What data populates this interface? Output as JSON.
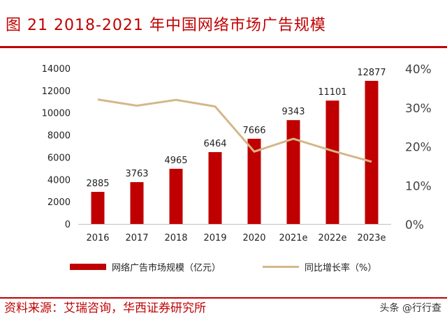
{
  "header": {
    "title": "图 21  2018-2021 年中国网络市场广告规模"
  },
  "footer": {
    "source": "资料来源：艾瑞咨询，华西证券研究所",
    "watermark": "头条 @行行查"
  },
  "chart_data": {
    "type": "bar",
    "categories": [
      "2016",
      "2017",
      "2018",
      "2019",
      "2020",
      "2021e",
      "2022e",
      "2023e"
    ],
    "series": [
      {
        "name": "网络广告市场规模（亿元）",
        "type": "bar",
        "axis": "left",
        "color": "#c00000",
        "values": [
          2885,
          3763,
          4965,
          6464,
          7666,
          9343,
          11101,
          12877
        ]
      },
      {
        "name": "同比增长率（%）",
        "type": "line",
        "axis": "right",
        "color": "#d4b78a",
        "values": [
          32,
          30.4,
          31.9,
          30.2,
          18.6,
          21.9,
          18.8,
          16.0
        ]
      }
    ],
    "bar_labels": [
      "2885",
      "3763",
      "4965",
      "6464",
      "7666",
      "9343",
      "11101",
      "12877"
    ],
    "ylim_left": [
      0,
      14000
    ],
    "yticks_left": [
      0,
      2000,
      4000,
      6000,
      8000,
      10000,
      12000,
      14000
    ],
    "ylim_right": [
      0,
      40
    ],
    "yticks_right": [
      "0%",
      "10%",
      "20%",
      "30%",
      "40%"
    ],
    "grid": false,
    "legend_position": "bottom"
  }
}
